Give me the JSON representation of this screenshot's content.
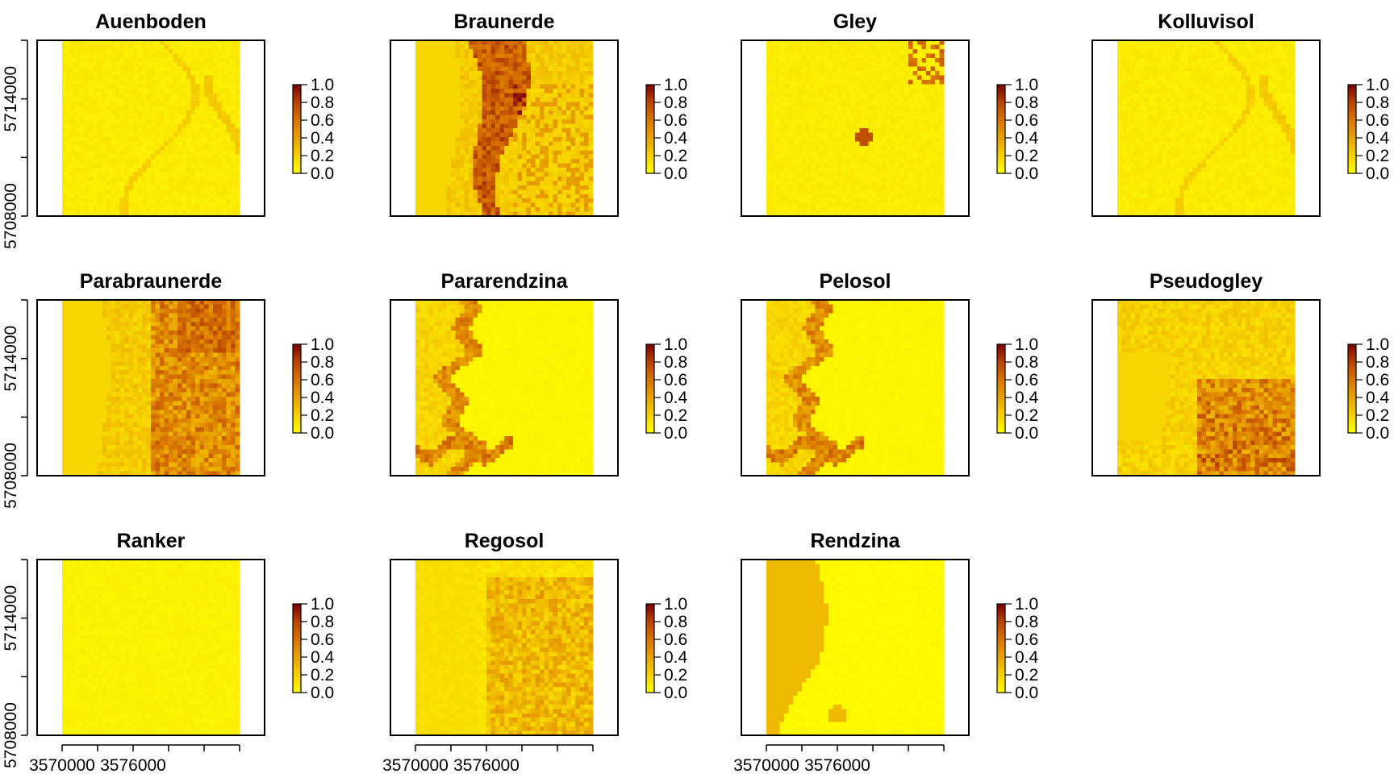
{
  "chart_data": {
    "type": "heatmap",
    "palette": [
      "#ffff00",
      "#f6d000",
      "#e8a200",
      "#d87400",
      "#b84400",
      "#7a0000"
    ],
    "legend": {
      "ticks": [
        0.0,
        0.2,
        0.4,
        0.6,
        0.8,
        1.0
      ],
      "labels": [
        "1.0",
        "0.8",
        "0.6",
        "0.4",
        "0.2",
        "0.0"
      ],
      "range": [
        0,
        1
      ]
    },
    "x_axis": {
      "ticks": [
        3570000,
        3573000,
        3576000,
        3579000,
        3582000,
        3585000
      ],
      "labels": [
        "3570000",
        "3576000"
      ]
    },
    "y_axis": {
      "ticks": [
        5708000,
        5711000,
        5714000,
        5717000
      ],
      "labels": [
        "5708000",
        "5714000"
      ]
    },
    "panels": [
      {
        "title": "Auenboden",
        "mean_value": 0.08,
        "pattern": "river_lines"
      },
      {
        "title": "Braunerde",
        "mean_value": 0.35,
        "pattern": "central_band"
      },
      {
        "title": "Gley",
        "mean_value": 0.08,
        "pattern": "sparse_spots"
      },
      {
        "title": "Kolluvisol",
        "mean_value": 0.08,
        "pattern": "river_lines"
      },
      {
        "title": "Parabraunerde",
        "mean_value": 0.3,
        "pattern": "east_high"
      },
      {
        "title": "Pararendzina",
        "mean_value": 0.12,
        "pattern": "west_meander"
      },
      {
        "title": "Pelosol",
        "mean_value": 0.1,
        "pattern": "west_meander"
      },
      {
        "title": "Pseudogley",
        "mean_value": 0.25,
        "pattern": "southeast_high"
      },
      {
        "title": "Ranker",
        "mean_value": 0.05,
        "pattern": "uniform"
      },
      {
        "title": "Regosol",
        "mean_value": 0.15,
        "pattern": "mixed"
      },
      {
        "title": "Rendzina",
        "mean_value": 0.1,
        "pattern": "west_block"
      }
    ]
  }
}
